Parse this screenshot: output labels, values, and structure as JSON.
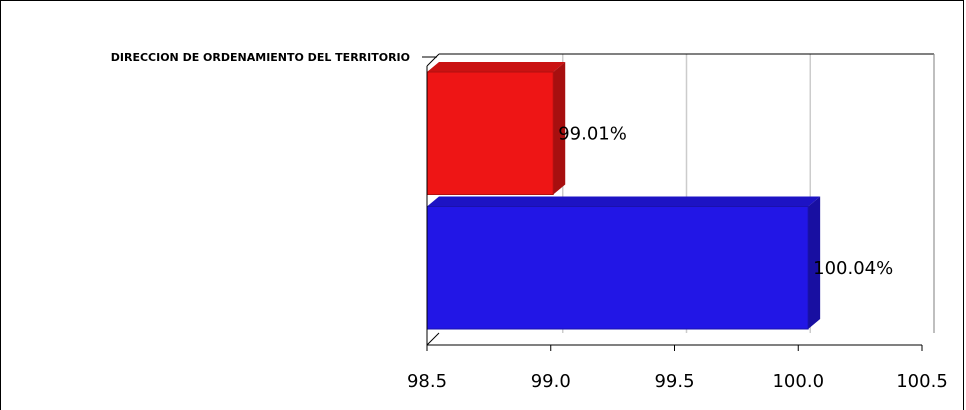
{
  "chart_data": {
    "type": "bar",
    "orientation": "horizontal",
    "categories": [
      "DIRECCION DE ORDENAMIENTO DEL TERRITORIO"
    ],
    "series": [
      {
        "values": [
          99.01
        ],
        "label": "99.01%",
        "color": "#ee1515"
      },
      {
        "values": [
          100.04
        ],
        "label": "100.04%",
        "color": "#2216e6"
      }
    ],
    "x_ticks": [
      "98.5",
      "99.0",
      "99.5",
      "100.0",
      "100.5"
    ],
    "xlim": [
      98.5,
      100.5
    ],
    "grid": true,
    "three_d": true
  }
}
